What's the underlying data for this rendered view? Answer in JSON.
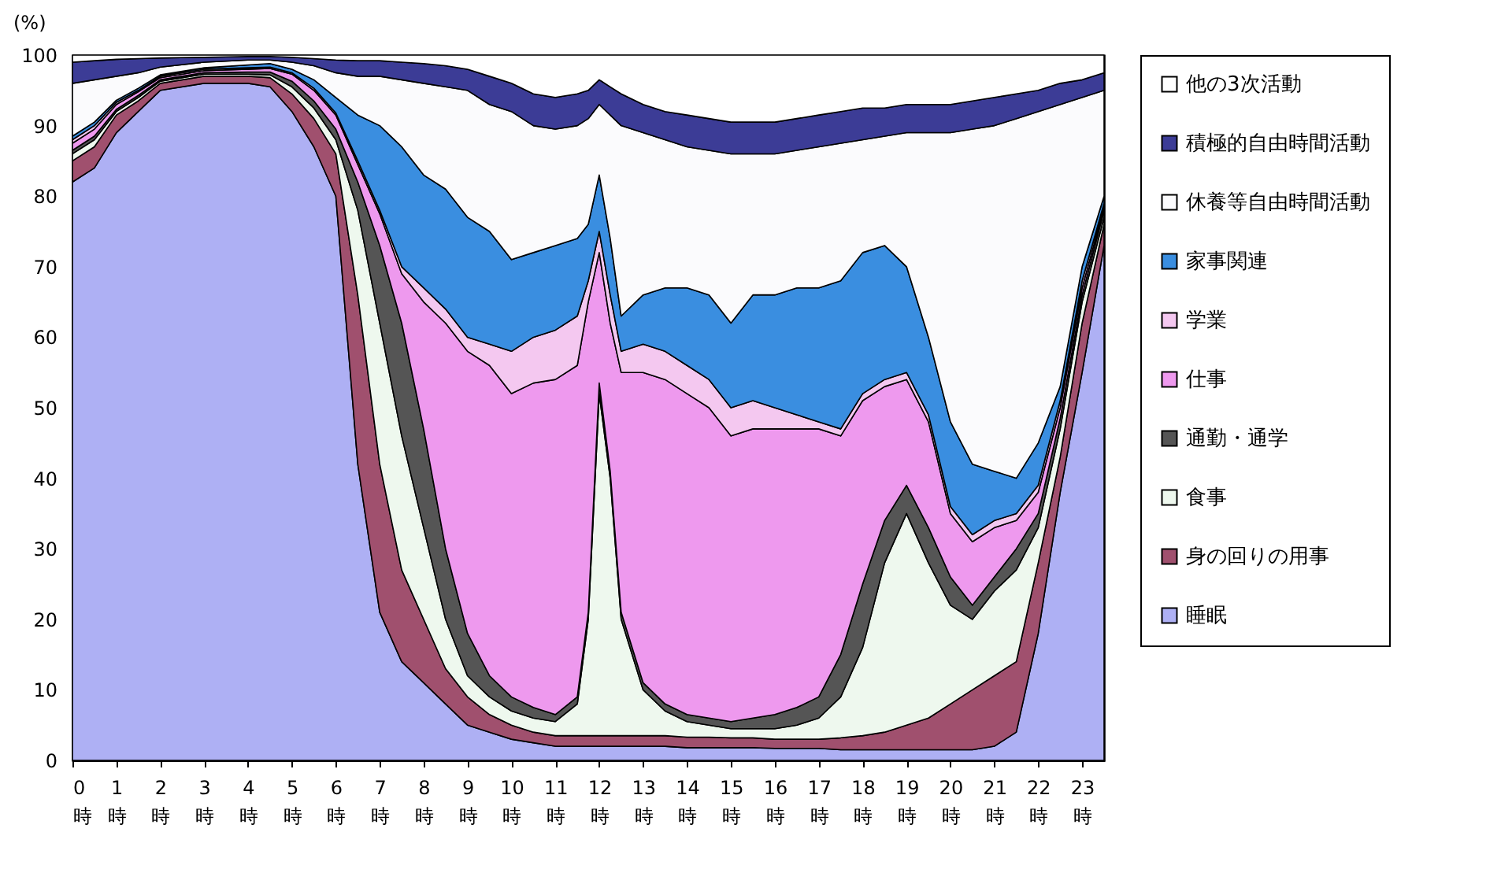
{
  "chart_data": {
    "type": "area",
    "stacked": true,
    "ylabel": "(%)",
    "legend": "right",
    "grid": false,
    "x": [
      0,
      0.5,
      1,
      1.5,
      2,
      3,
      4,
      4.5,
      5,
      5.5,
      6,
      6.5,
      7,
      7.5,
      8,
      8.5,
      9,
      9.5,
      10,
      10.5,
      11,
      11.5,
      11.75,
      12,
      12.25,
      12.5,
      13,
      13.5,
      14,
      14.5,
      15,
      15.5,
      16,
      16.5,
      17,
      17.5,
      18,
      18.5,
      19,
      19.5,
      20,
      20.5,
      21,
      21.5,
      22,
      22.5,
      23,
      23.5
    ],
    "xlim": [
      0,
      23.5
    ],
    "xticks": [
      {
        "value": 0,
        "label": "0時"
      },
      {
        "value": 1,
        "label": "1時"
      },
      {
        "value": 2,
        "label": "2時"
      },
      {
        "value": 3,
        "label": "3時"
      },
      {
        "value": 4,
        "label": "4時"
      },
      {
        "value": 5,
        "label": "5時"
      },
      {
        "value": 6,
        "label": "6時"
      },
      {
        "value": 7,
        "label": "7時"
      },
      {
        "value": 8,
        "label": "8時"
      },
      {
        "value": 9,
        "label": "9時"
      },
      {
        "value": 10,
        "label": "10時"
      },
      {
        "value": 11,
        "label": "11時"
      },
      {
        "value": 12,
        "label": "12時"
      },
      {
        "value": 13,
        "label": "13時"
      },
      {
        "value": 14,
        "label": "14時"
      },
      {
        "value": 15,
        "label": "15時"
      },
      {
        "value": 16,
        "label": "16時"
      },
      {
        "value": 17,
        "label": "17時"
      },
      {
        "value": 18,
        "label": "18時"
      },
      {
        "value": 19,
        "label": "19時"
      },
      {
        "value": 20,
        "label": "20時"
      },
      {
        "value": 21,
        "label": "21時"
      },
      {
        "value": 22,
        "label": "22時"
      },
      {
        "value": 23,
        "label": "23時"
      }
    ],
    "ylim": [
      0,
      100
    ],
    "yticks": [
      0,
      10,
      20,
      30,
      40,
      50,
      60,
      70,
      80,
      90,
      100
    ],
    "series": [
      {
        "name": "睡眠",
        "color": "#aeb0f4",
        "values": [
          82,
          84,
          89,
          92,
          95,
          96,
          96,
          95.5,
          92,
          87,
          80,
          42,
          21,
          14,
          11,
          8,
          5,
          4,
          3,
          2.5,
          2,
          2,
          2,
          2,
          2,
          2,
          2,
          2,
          1.8,
          1.8,
          1.8,
          1.8,
          1.7,
          1.7,
          1.7,
          1.5,
          1.5,
          1.5,
          1.5,
          1.5,
          1.5,
          1.5,
          2,
          4,
          18,
          38,
          55,
          73
        ]
      },
      {
        "name": "身の回りの用事",
        "color": "#a0506e",
        "values": [
          3,
          3,
          2.5,
          1.5,
          1,
          1,
          1,
          1.3,
          2.5,
          4,
          6,
          24,
          21,
          13,
          9,
          5,
          4,
          2.5,
          2,
          1.5,
          1.5,
          1.5,
          1.5,
          1.5,
          1.5,
          1.5,
          1.5,
          1.5,
          1.5,
          1.5,
          1.4,
          1.4,
          1.3,
          1.3,
          1.3,
          1.7,
          2,
          2.5,
          3.5,
          4.5,
          6.5,
          8.5,
          10,
          10,
          10,
          5,
          7,
          3
        ]
      },
      {
        "name": "食事",
        "color": "#eef8ee",
        "values": [
          1,
          1,
          0.5,
          0.5,
          0.3,
          0.3,
          0.3,
          0.4,
          1,
          1.5,
          2,
          12,
          20,
          19,
          13,
          7,
          3,
          2.5,
          2,
          2,
          2,
          4.5,
          16.5,
          48.5,
          36.5,
          16.5,
          6.5,
          3.5,
          2.2,
          1.7,
          1.3,
          1.3,
          1.5,
          2,
          3,
          5.8,
          12.5,
          24,
          30,
          22,
          14,
          10,
          12,
          13,
          5,
          4,
          3,
          1
        ]
      },
      {
        "name": "通勤・通学",
        "color": "#555555",
        "values": [
          0.5,
          0.5,
          0.3,
          0.3,
          0.2,
          0.2,
          0.3,
          0.4,
          0.8,
          1,
          1.5,
          4,
          11,
          16,
          14,
          10,
          6,
          3,
          2,
          1.5,
          1,
          1,
          1,
          1.5,
          1,
          1,
          1,
          1,
          1,
          1,
          1,
          1.5,
          2,
          2.5,
          3,
          6,
          9,
          6,
          4,
          5,
          4,
          2,
          2,
          3,
          2,
          1.5,
          1,
          1
        ]
      },
      {
        "name": "仕事",
        "color": "#ee99ee",
        "values": [
          1,
          1,
          0.7,
          0.5,
          0.3,
          0.3,
          0.4,
          0.5,
          1,
          1.5,
          2,
          2.5,
          4.5,
          7,
          18,
          32,
          40,
          44,
          43,
          46,
          47.5,
          47,
          44,
          18.5,
          21,
          34,
          44,
          46,
          45.5,
          44,
          40.5,
          41,
          40.5,
          39.5,
          38,
          31,
          26,
          19,
          15,
          15,
          9,
          9,
          7,
          4,
          3,
          1.5,
          1,
          0.5
        ]
      },
      {
        "name": "学業",
        "color": "#f4c8f0",
        "values": [
          0.5,
          0.5,
          0.3,
          0.2,
          0.2,
          0.2,
          0.2,
          0.2,
          0.2,
          0.3,
          0.3,
          0.5,
          0.5,
          1,
          2,
          2,
          2,
          3,
          6,
          6.5,
          7,
          7,
          3,
          3,
          4,
          3,
          4,
          4,
          4,
          4,
          4,
          4,
          3,
          2,
          1,
          1,
          1,
          1,
          1,
          1,
          1,
          1,
          1,
          1,
          1,
          1,
          1,
          0.5
        ]
      },
      {
        "name": "家事関連",
        "color": "#3a8ee0",
        "values": [
          0.5,
          0.5,
          0.3,
          0.3,
          0.2,
          0.2,
          0.4,
          0.5,
          0.5,
          1.2,
          2.2,
          6.5,
          12,
          17,
          16,
          17,
          17,
          16,
          13,
          12,
          12,
          11,
          8,
          8,
          8,
          5,
          7,
          9,
          11,
          12,
          12,
          15,
          16,
          18,
          19,
          21,
          20,
          19,
          15,
          11,
          12,
          10,
          7,
          5,
          6,
          2,
          2,
          1
        ]
      },
      {
        "name": "休養等自由時間活動",
        "color": "#fbfbfd",
        "values": [
          7.5,
          6,
          3.4,
          2.2,
          1.1,
          0.8,
          0.7,
          0.5,
          1,
          2,
          3.5,
          5.5,
          7,
          9.5,
          13,
          14.5,
          18,
          18,
          21,
          18,
          16.5,
          16,
          15,
          10,
          17.5,
          27,
          23,
          21,
          20,
          20.5,
          24,
          20,
          20,
          19.5,
          20,
          19.5,
          16,
          15.5,
          19,
          29,
          41,
          47.5,
          49,
          51,
          47,
          40,
          24,
          15
        ]
      },
      {
        "name": "積極的自由時間活動",
        "color": "#3c3c96",
        "values": [
          3,
          2.7,
          2.4,
          2,
          1.3,
          0.7,
          0.5,
          0.5,
          0.7,
          1,
          1.8,
          2.2,
          2.2,
          2.5,
          2.8,
          3,
          3,
          4,
          4,
          4.5,
          4.5,
          4.5,
          4,
          3.5,
          4,
          4.5,
          4,
          4,
          4.5,
          4.5,
          4.5,
          4.5,
          4.5,
          4.5,
          4.5,
          4.5,
          4.5,
          4,
          4,
          4,
          4,
          4,
          4,
          3.5,
          3,
          3,
          2.5,
          2.5
        ]
      },
      {
        "name": "他の3次活動",
        "color": "#ffffff",
        "values": [
          1,
          0.8,
          0.6,
          0.5,
          0.4,
          0.3,
          0.2,
          0.2,
          0.3,
          0.5,
          0.7,
          0.8,
          0.8,
          1,
          1.2,
          1.5,
          2,
          3,
          4,
          5.5,
          6,
          5.5,
          5,
          3.5,
          4.5,
          5.5,
          7,
          8,
          8.5,
          9,
          9.5,
          9.5,
          9.5,
          9,
          8.5,
          8,
          7.5,
          7.5,
          7,
          7,
          7,
          6.5,
          6,
          5.5,
          5,
          4,
          3.5,
          2.5
        ]
      }
    ]
  }
}
